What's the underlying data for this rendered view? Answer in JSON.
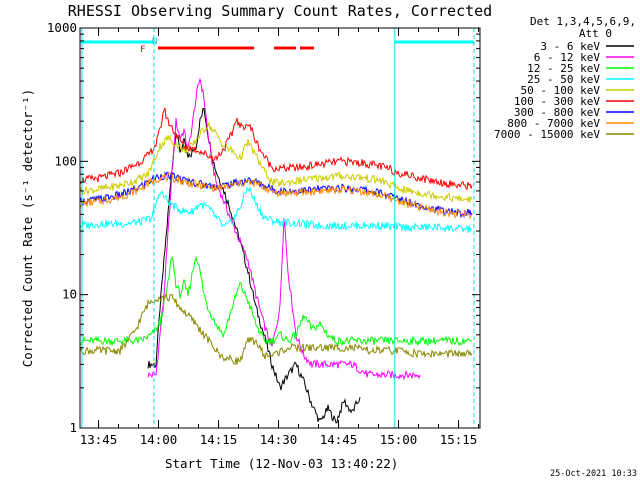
{
  "chart_data": {
    "type": "line",
    "title": "RHESSI Observing Summary Count Rates, Corrected",
    "xlabel": "Start Time (12-Nov-03 13:40:22)",
    "ylabel": "Corrected Count Rate (s⁻¹ detector⁻¹)",
    "yscale": "log",
    "ylim": [
      1,
      1000
    ],
    "xlim_minutes": [
      0,
      100
    ],
    "x_tick_labels": [
      "13:45",
      "14:00",
      "14:15",
      "14:30",
      "14:45",
      "15:00",
      "15:15"
    ],
    "x_tick_minutes": [
      4.63,
      19.63,
      34.63,
      49.63,
      64.63,
      79.63,
      94.63
    ],
    "y_tick_labels": [
      "1",
      "10",
      "100",
      "1000"
    ],
    "y_tick_values": [
      1,
      10,
      100,
      1000
    ],
    "legend_header": [
      "Det 1,3,4,5,6,9,",
      "Att 0"
    ],
    "timestamp": "25-Oct-2021 10:33",
    "flag_labels": [
      "F",
      "N"
    ],
    "night_bars": [
      [
        0,
        18.5
      ],
      [
        78.7,
        98.5
      ]
    ],
    "flare_bars": [
      [
        19.5,
        43.5
      ],
      [
        48.5,
        54
      ],
      [
        55,
        58.5
      ]
    ],
    "boundaries": [
      {
        "minute": 0.5,
        "style": "solid"
      },
      {
        "minute": 18.5,
        "style": "dashed"
      },
      {
        "minute": 78.7,
        "style": "solid"
      },
      {
        "minute": 98.5,
        "style": "dashed"
      }
    ],
    "series": [
      {
        "name": "3 - 6 keV",
        "color": "#000000",
        "points": [
          [
            17,
            3.0
          ],
          [
            19,
            3.0
          ],
          [
            20,
            8
          ],
          [
            22,
            40
          ],
          [
            23,
            90
          ],
          [
            24,
            170
          ],
          [
            25,
            120
          ],
          [
            26,
            140
          ],
          [
            27,
            105
          ],
          [
            28,
            115
          ],
          [
            29,
            130
          ],
          [
            30,
            200
          ],
          [
            31,
            250
          ],
          [
            32,
            160
          ],
          [
            33,
            110
          ],
          [
            34,
            85
          ],
          [
            36,
            60
          ],
          [
            38,
            40
          ],
          [
            40,
            25
          ],
          [
            42,
            15
          ],
          [
            44,
            8
          ],
          [
            46,
            5
          ],
          [
            48,
            3
          ],
          [
            50,
            2
          ],
          [
            52,
            2.5
          ],
          [
            54,
            3
          ],
          [
            56,
            2.2
          ],
          [
            58,
            1.5
          ],
          [
            60,
            1.1
          ],
          [
            62,
            1.4
          ],
          [
            64,
            1.1
          ],
          [
            66,
            1.6
          ],
          [
            68,
            1.3
          ],
          [
            70,
            1.7
          ]
        ]
      },
      {
        "name": "6 - 12 keV",
        "color": "#ff00ff",
        "points": [
          [
            17,
            2.5
          ],
          [
            19,
            2.5
          ],
          [
            21,
            10
          ],
          [
            23,
            80
          ],
          [
            24,
            200
          ],
          [
            25,
            150
          ],
          [
            26,
            170
          ],
          [
            27,
            120
          ],
          [
            28,
            180
          ],
          [
            29,
            300
          ],
          [
            30,
            420
          ],
          [
            31,
            300
          ],
          [
            32,
            160
          ],
          [
            33,
            100
          ],
          [
            34,
            70
          ],
          [
            36,
            50
          ],
          [
            38,
            35
          ],
          [
            40,
            25
          ],
          [
            42,
            18
          ],
          [
            44,
            10
          ],
          [
            46,
            6
          ],
          [
            48,
            4
          ],
          [
            50,
            8
          ],
          [
            51,
            40
          ],
          [
            52,
            15
          ],
          [
            54,
            5
          ],
          [
            56,
            3.5
          ],
          [
            58,
            3
          ],
          [
            60,
            3
          ],
          [
            64,
            3
          ],
          [
            68,
            3
          ],
          [
            72,
            2.5
          ],
          [
            76,
            2.5
          ],
          [
            80,
            2.5
          ],
          [
            85,
            2.5
          ]
        ]
      },
      {
        "name": "12 - 25 keV",
        "color": "#00ff00",
        "points": [
          [
            0,
            4.5
          ],
          [
            5,
            4.5
          ],
          [
            10,
            4.5
          ],
          [
            15,
            4.5
          ],
          [
            18,
            5
          ],
          [
            20,
            6
          ],
          [
            22,
            12
          ],
          [
            23,
            20
          ],
          [
            24,
            12
          ],
          [
            25,
            10
          ],
          [
            26,
            12
          ],
          [
            27,
            10
          ],
          [
            28,
            14
          ],
          [
            29,
            20
          ],
          [
            30,
            15
          ],
          [
            31,
            10
          ],
          [
            32,
            8
          ],
          [
            34,
            6
          ],
          [
            36,
            5
          ],
          [
            38,
            8
          ],
          [
            40,
            12
          ],
          [
            42,
            9
          ],
          [
            44,
            6
          ],
          [
            46,
            4.5
          ],
          [
            48,
            4.5
          ],
          [
            50,
            5
          ],
          [
            52,
            4.5
          ],
          [
            54,
            5
          ],
          [
            56,
            7
          ],
          [
            58,
            5.5
          ],
          [
            60,
            6
          ],
          [
            62,
            5
          ],
          [
            64,
            4.5
          ],
          [
            68,
            4.5
          ],
          [
            72,
            4.5
          ],
          [
            76,
            4.5
          ],
          [
            80,
            4.5
          ],
          [
            85,
            4.5
          ],
          [
            90,
            4.5
          ],
          [
            95,
            4.5
          ],
          [
            98,
            4.5
          ]
        ]
      },
      {
        "name": "25 - 50 keV",
        "color": "#00ffff",
        "points": [
          [
            0,
            33
          ],
          [
            5,
            34
          ],
          [
            10,
            34
          ],
          [
            15,
            35
          ],
          [
            18,
            38
          ],
          [
            20,
            60
          ],
          [
            22,
            50
          ],
          [
            24,
            45
          ],
          [
            26,
            42
          ],
          [
            28,
            42
          ],
          [
            30,
            48
          ],
          [
            32,
            45
          ],
          [
            34,
            38
          ],
          [
            36,
            32
          ],
          [
            38,
            35
          ],
          [
            40,
            45
          ],
          [
            42,
            65
          ],
          [
            44,
            48
          ],
          [
            46,
            38
          ],
          [
            48,
            36
          ],
          [
            50,
            35
          ],
          [
            55,
            34
          ],
          [
            60,
            33
          ],
          [
            65,
            33
          ],
          [
            70,
            33
          ],
          [
            75,
            33
          ],
          [
            80,
            32
          ],
          [
            85,
            32
          ],
          [
            90,
            32
          ],
          [
            95,
            31
          ],
          [
            98,
            31
          ]
        ]
      },
      {
        "name": "50 - 100 keV",
        "color": "#cccc00",
        "points": [
          [
            0,
            60
          ],
          [
            5,
            62
          ],
          [
            10,
            66
          ],
          [
            14,
            72
          ],
          [
            17,
            80
          ],
          [
            19,
            110
          ],
          [
            20,
            130
          ],
          [
            22,
            150
          ],
          [
            24,
            135
          ],
          [
            26,
            120
          ],
          [
            28,
            130
          ],
          [
            30,
            160
          ],
          [
            32,
            190
          ],
          [
            34,
            160
          ],
          [
            36,
            130
          ],
          [
            38,
            120
          ],
          [
            40,
            105
          ],
          [
            42,
            140
          ],
          [
            44,
            110
          ],
          [
            46,
            85
          ],
          [
            48,
            70
          ],
          [
            50,
            68
          ],
          [
            55,
            72
          ],
          [
            60,
            75
          ],
          [
            65,
            78
          ],
          [
            70,
            76
          ],
          [
            75,
            72
          ],
          [
            80,
            62
          ],
          [
            85,
            58
          ],
          [
            90,
            55
          ],
          [
            95,
            52
          ],
          [
            98,
            52
          ]
        ]
      },
      {
        "name": "100 - 300 keV",
        "color": "#ff0000",
        "points": [
          [
            0,
            72
          ],
          [
            5,
            75
          ],
          [
            10,
            82
          ],
          [
            14,
            95
          ],
          [
            17,
            110
          ],
          [
            19,
            135
          ],
          [
            20,
            170
          ],
          [
            21,
            250
          ],
          [
            22,
            200
          ],
          [
            24,
            160
          ],
          [
            26,
            130
          ],
          [
            28,
            125
          ],
          [
            30,
            120
          ],
          [
            32,
            110
          ],
          [
            34,
            105
          ],
          [
            36,
            125
          ],
          [
            38,
            160
          ],
          [
            39,
            210
          ],
          [
            40,
            180
          ],
          [
            42,
            190
          ],
          [
            43,
            170
          ],
          [
            44,
            140
          ],
          [
            46,
            110
          ],
          [
            48,
            90
          ],
          [
            50,
            88
          ],
          [
            55,
            90
          ],
          [
            60,
            95
          ],
          [
            65,
            100
          ],
          [
            70,
            98
          ],
          [
            75,
            92
          ],
          [
            80,
            82
          ],
          [
            85,
            75
          ],
          [
            90,
            70
          ],
          [
            95,
            66
          ],
          [
            98,
            66
          ]
        ]
      },
      {
        "name": "300 - 800 keV",
        "color": "#0000ff",
        "points": [
          [
            0,
            50
          ],
          [
            5,
            52
          ],
          [
            10,
            56
          ],
          [
            14,
            62
          ],
          [
            17,
            70
          ],
          [
            20,
            78
          ],
          [
            22,
            78
          ],
          [
            24,
            76
          ],
          [
            26,
            72
          ],
          [
            28,
            70
          ],
          [
            30,
            68
          ],
          [
            32,
            66
          ],
          [
            34,
            65
          ],
          [
            36,
            66
          ],
          [
            38,
            68
          ],
          [
            40,
            70
          ],
          [
            42,
            72
          ],
          [
            44,
            70
          ],
          [
            46,
            66
          ],
          [
            48,
            62
          ],
          [
            50,
            60
          ],
          [
            55,
            60
          ],
          [
            60,
            62
          ],
          [
            65,
            63
          ],
          [
            70,
            62
          ],
          [
            75,
            58
          ],
          [
            80,
            52
          ],
          [
            85,
            47
          ],
          [
            90,
            43
          ],
          [
            95,
            41
          ],
          [
            98,
            41
          ]
        ]
      },
      {
        "name": "800 - 7000 keV",
        "color": "#ff8800",
        "points": [
          [
            0,
            48
          ],
          [
            5,
            50
          ],
          [
            10,
            54
          ],
          [
            14,
            60
          ],
          [
            17,
            68
          ],
          [
            20,
            76
          ],
          [
            22,
            76
          ],
          [
            24,
            74
          ],
          [
            26,
            70
          ],
          [
            28,
            68
          ],
          [
            30,
            66
          ],
          [
            32,
            64
          ],
          [
            34,
            63
          ],
          [
            36,
            64
          ],
          [
            38,
            66
          ],
          [
            40,
            68
          ],
          [
            42,
            70
          ],
          [
            44,
            68
          ],
          [
            46,
            64
          ],
          [
            48,
            60
          ],
          [
            50,
            58
          ],
          [
            55,
            58
          ],
          [
            60,
            60
          ],
          [
            65,
            61
          ],
          [
            70,
            60
          ],
          [
            75,
            56
          ],
          [
            80,
            50
          ],
          [
            85,
            45
          ],
          [
            90,
            42
          ],
          [
            95,
            40
          ],
          [
            98,
            40
          ]
        ]
      },
      {
        "name": "7000 - 15000 keV",
        "color": "#888800",
        "points": [
          [
            0,
            3.8
          ],
          [
            5,
            3.8
          ],
          [
            10,
            3.8
          ],
          [
            12,
            4.5
          ],
          [
            14,
            5.5
          ],
          [
            16,
            7.5
          ],
          [
            17,
            8.5
          ],
          [
            19,
            9.5
          ],
          [
            21,
            9.5
          ],
          [
            23,
            9.5
          ],
          [
            25,
            8
          ],
          [
            27,
            7
          ],
          [
            29,
            6
          ],
          [
            31,
            5
          ],
          [
            33,
            4.2
          ],
          [
            35,
            3.5
          ],
          [
            37,
            3.3
          ],
          [
            39,
            3.2
          ],
          [
            40,
            3.2
          ],
          [
            42,
            4.5
          ],
          [
            44,
            4.5
          ],
          [
            46,
            3.5
          ],
          [
            48,
            3.5
          ],
          [
            52,
            4
          ],
          [
            56,
            4
          ],
          [
            60,
            4
          ],
          [
            64,
            4
          ],
          [
            68,
            4
          ],
          [
            72,
            3.8
          ],
          [
            76,
            3.8
          ],
          [
            80,
            3.8
          ],
          [
            85,
            3.6
          ],
          [
            90,
            3.6
          ],
          [
            95,
            3.6
          ],
          [
            98,
            3.6
          ]
        ]
      }
    ]
  }
}
